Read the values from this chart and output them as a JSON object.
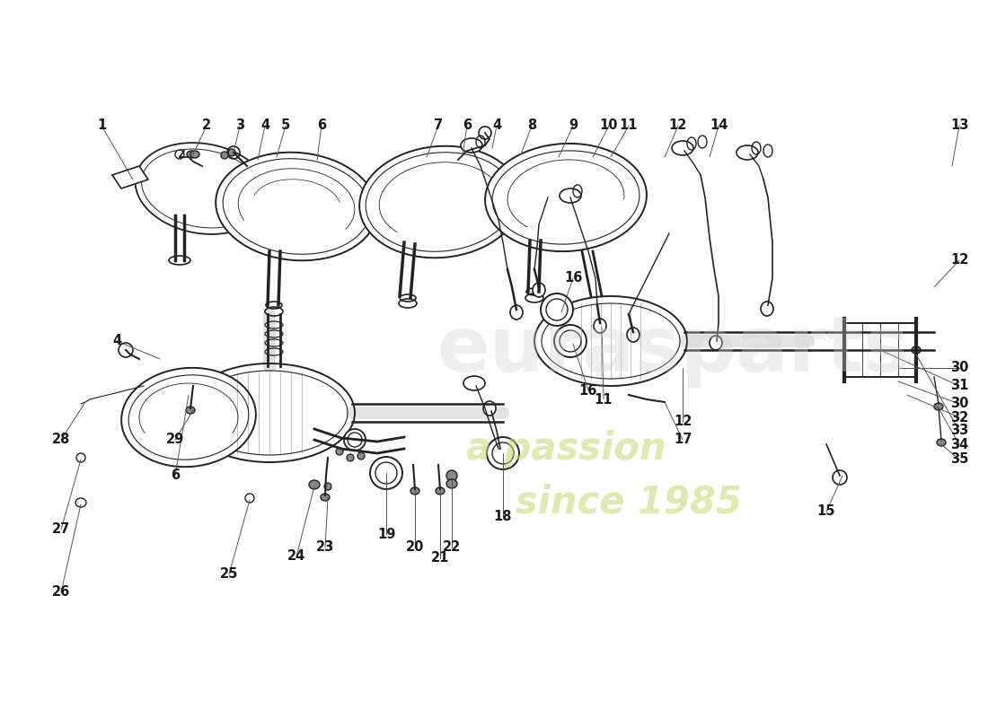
{
  "title": "",
  "background_color": "#ffffff",
  "watermark_text1": "eurasparts",
  "watermark_text2": "a passion",
  "watermark_text3": "since 1985",
  "watermark_color": "#d0d0d0",
  "part_numbers": [
    1,
    2,
    3,
    4,
    5,
    6,
    7,
    8,
    9,
    10,
    11,
    12,
    13,
    14,
    15,
    16,
    17,
    18,
    19,
    20,
    21,
    22,
    23,
    24,
    25,
    26,
    27,
    28,
    29,
    30,
    31,
    32,
    33,
    34,
    35
  ],
  "label_color": "#1a1a1a",
  "line_color": "#333333",
  "drawing_color": "#222222"
}
